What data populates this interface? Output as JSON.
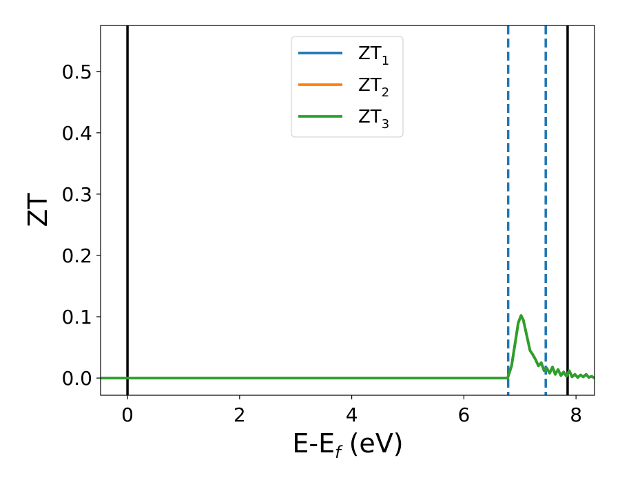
{
  "chart_data": {
    "type": "line",
    "xlabel": {
      "main": "E-E",
      "sub": "f",
      "tail": " (eV)"
    },
    "ylabel": "ZT",
    "xlim": [
      -0.48,
      8.33
    ],
    "ylim": [
      -0.028,
      0.575
    ],
    "xticks": [
      0,
      2,
      4,
      6,
      8
    ],
    "xtick_labels": [
      "0",
      "2",
      "4",
      "6",
      "8"
    ],
    "yticks": [
      0.0,
      0.1,
      0.2,
      0.3,
      0.4,
      0.5
    ],
    "ytick_labels": [
      "0.0",
      "0.1",
      "0.2",
      "0.3",
      "0.4",
      "0.5"
    ],
    "grid": false,
    "legend_position": "top-center",
    "series": [
      {
        "name": "ZT",
        "sub": "1",
        "color": "#1f77b4",
        "x": [
          -0.48,
          6.78,
          6.85,
          6.92,
          6.97,
          7.02,
          7.06,
          7.12,
          7.18,
          7.23,
          7.28,
          7.33,
          7.38,
          7.43,
          7.48,
          7.53,
          7.58,
          7.63,
          7.68,
          7.73,
          7.78,
          7.83,
          7.88,
          7.93,
          7.98,
          8.03,
          8.08,
          8.13,
          8.18,
          8.23,
          8.28,
          8.33
        ],
        "y": [
          0.0,
          0.0,
          0.02,
          0.06,
          0.09,
          0.102,
          0.095,
          0.07,
          0.045,
          0.038,
          0.03,
          0.02,
          0.025,
          0.012,
          0.016,
          0.008,
          0.018,
          0.006,
          0.014,
          0.004,
          0.01,
          0.003,
          0.012,
          0.002,
          0.006,
          0.001,
          0.005,
          0.002,
          0.006,
          0.001,
          0.003,
          0.0
        ]
      },
      {
        "name": "ZT",
        "sub": "2",
        "color": "#ff7f0e",
        "x": [
          -0.48,
          6.78,
          6.85,
          6.92,
          6.97,
          7.02,
          7.06,
          7.12,
          7.18,
          7.23,
          7.28,
          7.33,
          7.38,
          7.43,
          7.48,
          7.53,
          7.58,
          7.63,
          7.68,
          7.73,
          7.78,
          7.83,
          7.88,
          7.93,
          7.98,
          8.03,
          8.08,
          8.13,
          8.18,
          8.23,
          8.28,
          8.33
        ],
        "y": [
          0.0,
          0.0,
          0.02,
          0.06,
          0.09,
          0.102,
          0.095,
          0.07,
          0.045,
          0.038,
          0.03,
          0.02,
          0.025,
          0.012,
          0.016,
          0.008,
          0.018,
          0.006,
          0.014,
          0.004,
          0.01,
          0.003,
          0.012,
          0.002,
          0.006,
          0.001,
          0.005,
          0.002,
          0.006,
          0.001,
          0.003,
          0.0
        ]
      },
      {
        "name": "ZT",
        "sub": "3",
        "color": "#2ca02c",
        "x": [
          -0.48,
          6.78,
          6.85,
          6.92,
          6.97,
          7.02,
          7.06,
          7.12,
          7.18,
          7.23,
          7.28,
          7.33,
          7.38,
          7.43,
          7.48,
          7.53,
          7.58,
          7.63,
          7.68,
          7.73,
          7.78,
          7.83,
          7.88,
          7.93,
          7.98,
          8.03,
          8.08,
          8.13,
          8.18,
          8.23,
          8.28,
          8.33
        ],
        "y": [
          0.0,
          0.0,
          0.02,
          0.06,
          0.09,
          0.102,
          0.095,
          0.07,
          0.045,
          0.038,
          0.03,
          0.02,
          0.025,
          0.012,
          0.016,
          0.008,
          0.018,
          0.006,
          0.014,
          0.004,
          0.01,
          0.003,
          0.012,
          0.002,
          0.006,
          0.001,
          0.005,
          0.002,
          0.006,
          0.001,
          0.003,
          0.0
        ]
      }
    ],
    "vlines": [
      {
        "x": 0.0,
        "style": "solid",
        "color": "#000000"
      },
      {
        "x": 7.85,
        "style": "solid",
        "color": "#000000"
      },
      {
        "x": 6.79,
        "style": "dashed",
        "color": "#1f77b4"
      },
      {
        "x": 7.46,
        "style": "dashed",
        "color": "#1f77b4"
      }
    ]
  }
}
